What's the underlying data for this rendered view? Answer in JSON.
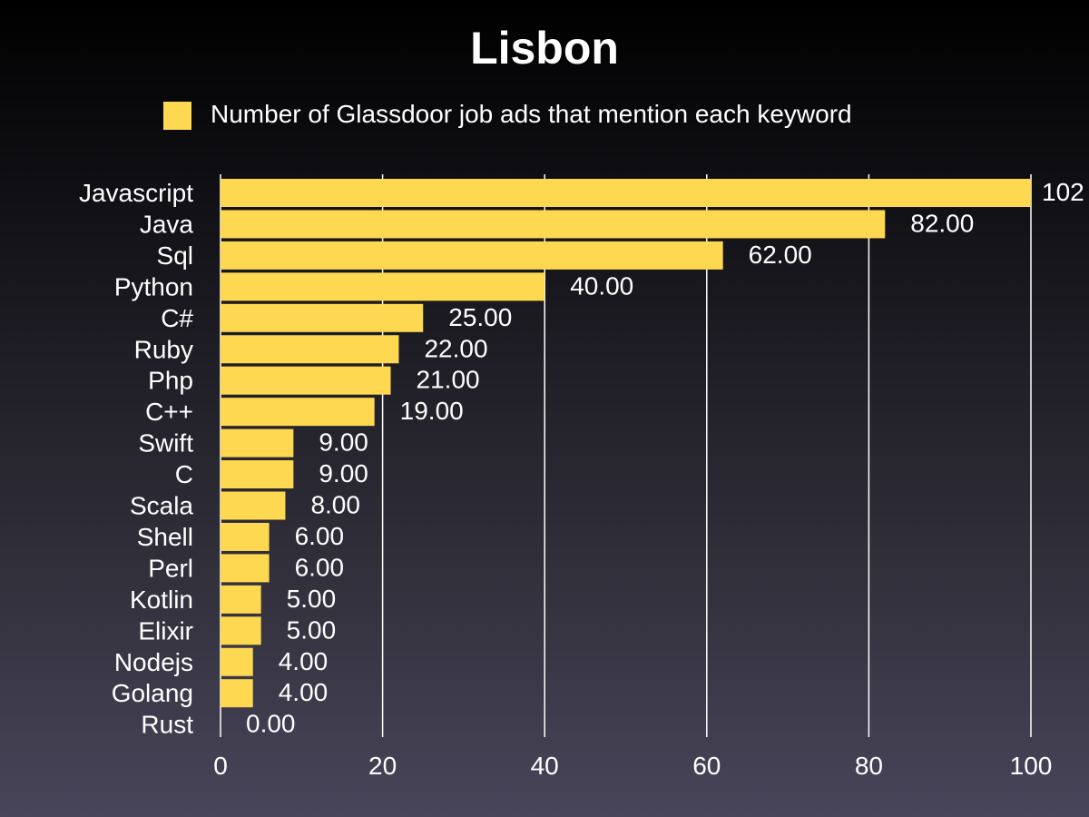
{
  "chart_data": {
    "type": "bar",
    "orientation": "horizontal",
    "title": "Lisbon",
    "xlabel": "",
    "ylabel": "",
    "categories": [
      "Javascript",
      "Java",
      "Sql",
      "Python",
      "C#",
      "Ruby",
      "Php",
      "C++",
      "Swift",
      "C",
      "Scala",
      "Shell",
      "Perl",
      "Kotlin",
      "Elixir",
      "Nodejs",
      "Golang",
      "Rust"
    ],
    "series": [
      {
        "name": "Number of Glassdoor job ads that mention each keyword",
        "values": [
          102,
          82,
          62,
          40,
          25,
          22,
          21,
          19,
          9,
          9,
          8,
          6,
          6,
          5,
          5,
          4,
          4,
          0
        ],
        "color": "#fed850"
      }
    ],
    "value_labels": [
      "102",
      "82.00",
      "62.00",
      "40.00",
      "25.00",
      "22.00",
      "21.00",
      "19.00",
      "9.00",
      "9.00",
      "8.00",
      "6.00",
      "6.00",
      "5.00",
      "5.00",
      "4.00",
      "4.00",
      "0.00"
    ],
    "xlim": [
      0,
      100
    ],
    "xticks": [
      "0",
      "20",
      "40",
      "60",
      "80",
      "100"
    ],
    "grid": "vertical",
    "legend_position": "top"
  }
}
